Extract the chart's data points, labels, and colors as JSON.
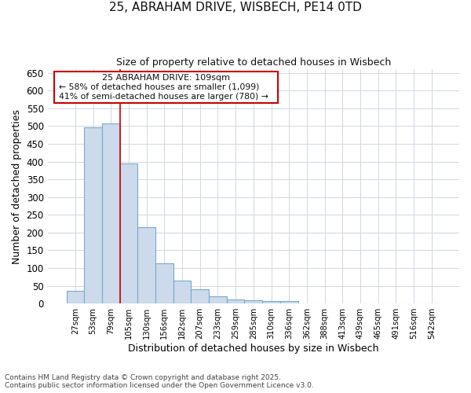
{
  "title_line1": "25, ABRAHAM DRIVE, WISBECH, PE14 0TD",
  "title_line2": "Size of property relative to detached houses in Wisbech",
  "xlabel": "Distribution of detached houses by size in Wisbech",
  "ylabel": "Number of detached properties",
  "categories": [
    "27sqm",
    "53sqm",
    "79sqm",
    "105sqm",
    "130sqm",
    "156sqm",
    "182sqm",
    "207sqm",
    "233sqm",
    "259sqm",
    "285sqm",
    "310sqm",
    "336sqm",
    "362sqm",
    "388sqm",
    "413sqm",
    "439sqm",
    "465sqm",
    "491sqm",
    "516sqm",
    "542sqm"
  ],
  "values": [
    35,
    497,
    507,
    395,
    215,
    113,
    65,
    40,
    20,
    12,
    9,
    8,
    8,
    1,
    1,
    1,
    1,
    1,
    1,
    1,
    1
  ],
  "bar_color": "#ccdaeb",
  "bar_edge_color": "#7aaac8",
  "vline_color": "#cc0000",
  "vline_x_idx": 2.5,
  "ylim": [
    0,
    660
  ],
  "yticks": [
    0,
    50,
    100,
    150,
    200,
    250,
    300,
    350,
    400,
    450,
    500,
    550,
    600,
    650
  ],
  "annotation_text_line1": "25 ABRAHAM DRIVE: 109sqm",
  "annotation_text_line2": "← 58% of detached houses are smaller (1,099)",
  "annotation_text_line3": "41% of semi-detached houses are larger (780) →",
  "footer_line1": "Contains HM Land Registry data © Crown copyright and database right 2025.",
  "footer_line2": "Contains public sector information licensed under the Open Government Licence v3.0.",
  "bg_color": "#ffffff",
  "plot_bg_color": "#ffffff",
  "grid_color": "#d0d8e0"
}
